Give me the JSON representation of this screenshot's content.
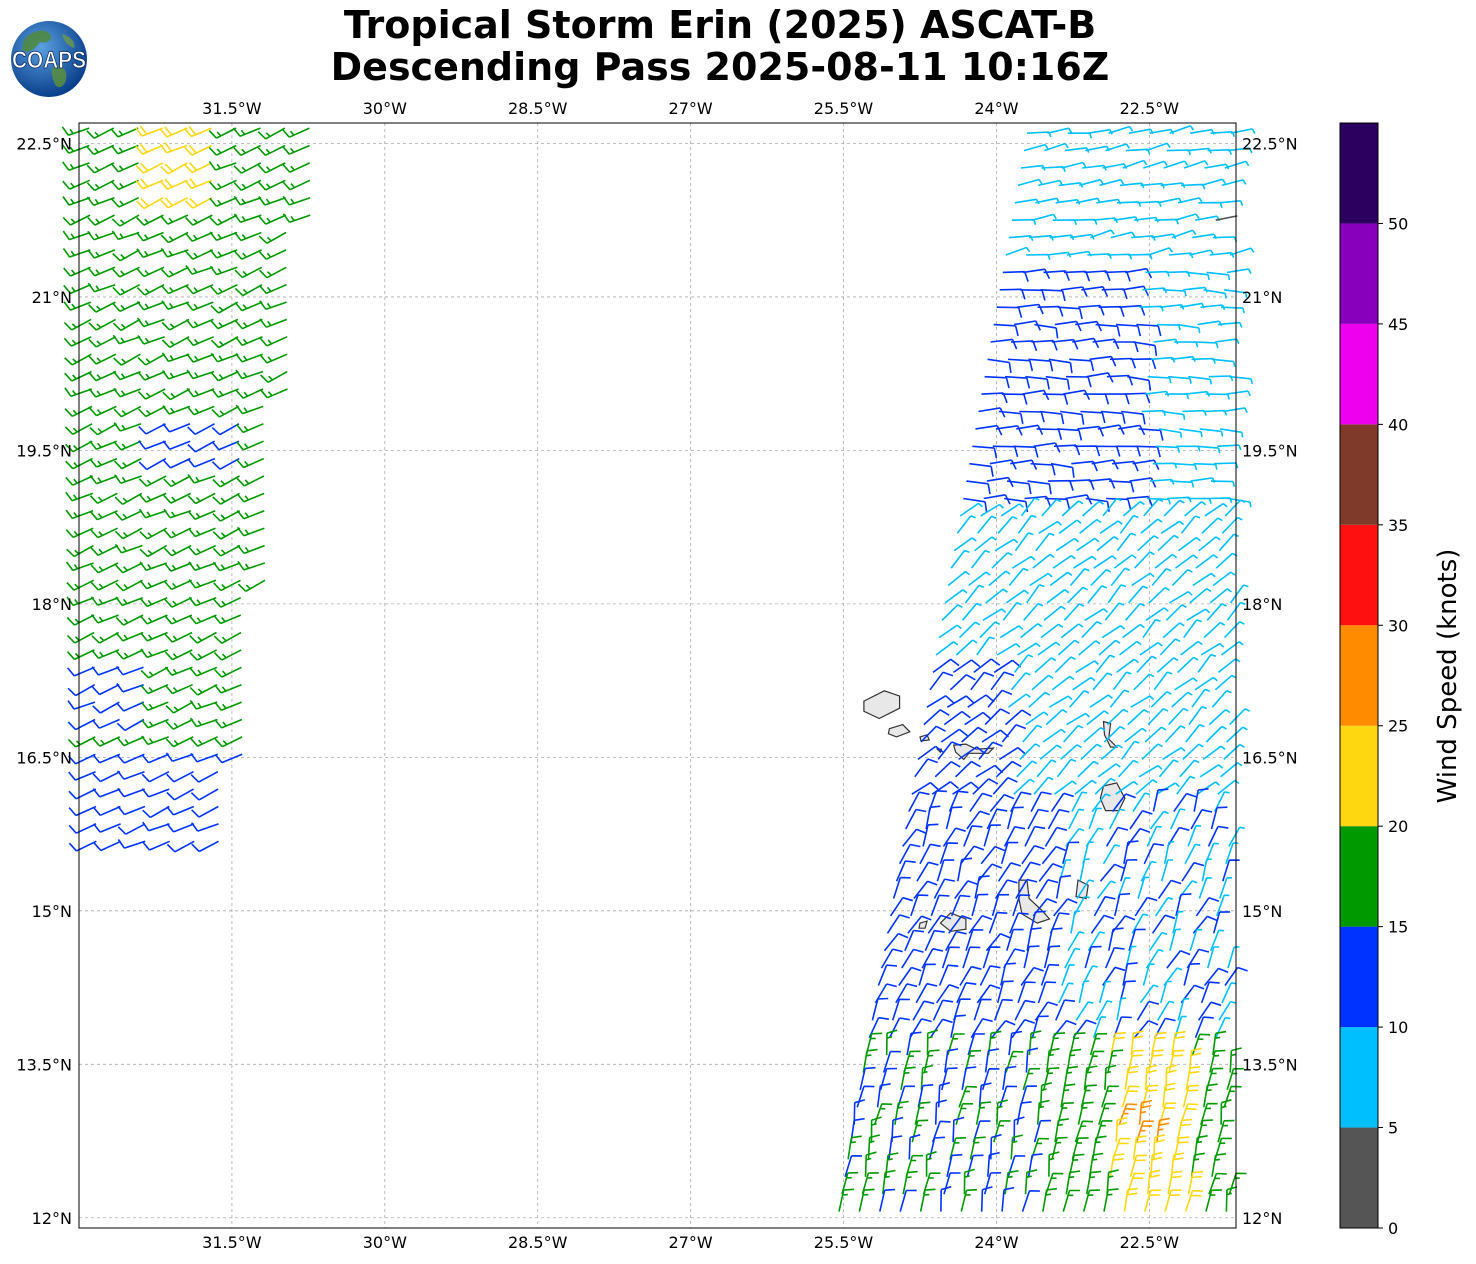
{
  "title": {
    "line1": "Tropical Storm Erin (2025) ASCAT-B",
    "line2": "Descending Pass 2025-08-11 10:16Z"
  },
  "logo": {
    "text": "COAPS",
    "icon": "globe-logo-icon"
  },
  "map": {
    "lon_range": [
      -33.0,
      -21.65
    ],
    "lat_range": [
      11.9,
      22.7
    ],
    "grid": true,
    "lon_ticks": [
      "31.5°W",
      "30°W",
      "28.5°W",
      "27°W",
      "25.5°W",
      "24°W",
      "22.5°W"
    ],
    "lat_ticks": [
      "22.5°N",
      "21°N",
      "19.5°N",
      "18°N",
      "16.5°N",
      "15°N",
      "13.5°N",
      "12°N"
    ],
    "lon_tick_values": [
      -31.5,
      -30,
      -28.5,
      -27,
      -25.5,
      -24,
      -22.5
    ],
    "lat_tick_values": [
      22.5,
      21,
      19.5,
      18,
      16.5,
      15,
      13.5,
      12
    ],
    "features": [
      "Cape Verde Islands coastline"
    ],
    "wind_barbs": "ASCAT-B wind vectors in two swaths (western and eastern), colored by speed"
  },
  "colorbar": {
    "label": "Wind Speed (knots)",
    "ticks": [
      "0",
      "5",
      "10",
      "15",
      "20",
      "25",
      "30",
      "35",
      "40",
      "45",
      "50"
    ],
    "bins": [
      {
        "min": 0,
        "max": 5,
        "color": "#555555"
      },
      {
        "min": 5,
        "max": 10,
        "color": "#00bfff"
      },
      {
        "min": 10,
        "max": 15,
        "color": "#0033ff"
      },
      {
        "min": 15,
        "max": 20,
        "color": "#009900"
      },
      {
        "min": 20,
        "max": 25,
        "color": "#ffd711"
      },
      {
        "min": 25,
        "max": 30,
        "color": "#ff8c00"
      },
      {
        "min": 30,
        "max": 35,
        "color": "#ff1010"
      },
      {
        "min": 35,
        "max": 40,
        "color": "#7f3a2a"
      },
      {
        "min": 40,
        "max": 45,
        "color": "#ee00ee"
      },
      {
        "min": 45,
        "max": 50,
        "color": "#8800bb"
      },
      {
        "min": 50,
        "max": 55,
        "color": "#2b005e"
      }
    ]
  }
}
